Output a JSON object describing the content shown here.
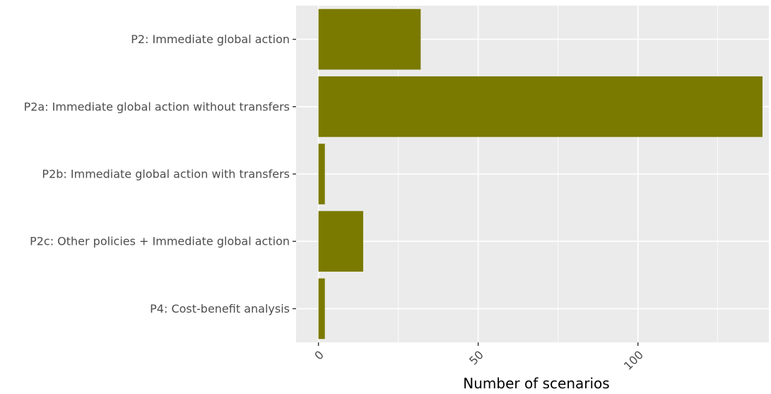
{
  "chart_data": {
    "type": "bar",
    "orientation": "horizontal",
    "title": "",
    "xlabel": "Number of scenarios",
    "ylabel": "",
    "categories": [
      "P2: Immediate global action",
      "P2a: Immediate global action without transfers",
      "P2b: Immediate global action with transfers",
      "P2c: Other policies + Immediate global action",
      "P4: Cost-benefit analysis"
    ],
    "values": [
      32,
      139,
      2,
      14,
      2
    ],
    "xlim": [
      -7,
      141
    ],
    "x_ticks": [
      0,
      50,
      100
    ],
    "x_tick_labels": [
      "0",
      "50",
      "100"
    ],
    "grid": true,
    "legend": "none",
    "colors": {
      "bar": "#7a7a00",
      "panel": "#ebebeb",
      "grid": "#ffffff",
      "tick_text": "#4d4d4d"
    }
  }
}
